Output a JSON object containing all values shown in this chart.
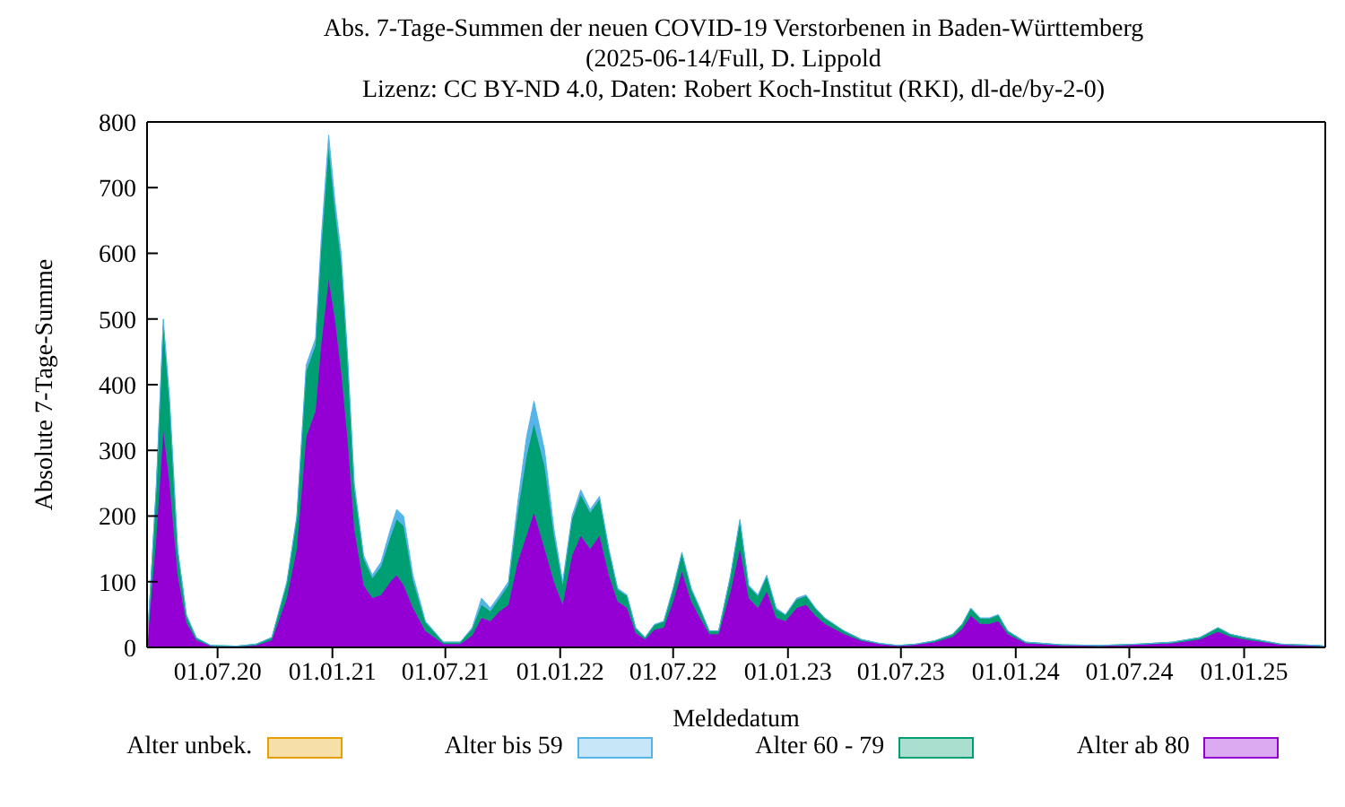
{
  "chart_data": {
    "type": "area",
    "stacked": true,
    "title": "Abs. 7-Tage-Summen der neuen COVID-19 Verstorbenen in Baden-Württemberg",
    "subtitle": "(2025-06-14/Full, D. Lippold\nLizenz: CC BY-ND 4.0, Daten: Robert Koch-Institut (RKI), dl-de/by-2-0)",
    "xlabel": "Meldedatum",
    "ylabel": "Absolute 7-Tage-Summe",
    "x": [
      "2020-03-10",
      "2020-03-25",
      "2020-04-05",
      "2020-04-15",
      "2020-04-28",
      "2020-05-12",
      "2020-05-28",
      "2020-06-20",
      "2020-08-01",
      "2020-09-01",
      "2020-09-26",
      "2020-10-20",
      "2020-11-05",
      "2020-11-20",
      "2020-12-05",
      "2020-12-14",
      "2020-12-26",
      "2021-01-05",
      "2021-01-15",
      "2021-01-25",
      "2021-02-05",
      "2021-02-20",
      "2021-03-06",
      "2021-03-20",
      "2021-04-04",
      "2021-04-14",
      "2021-04-25",
      "2021-05-10",
      "2021-05-30",
      "2021-06-28",
      "2021-07-25",
      "2021-08-13",
      "2021-08-28",
      "2021-09-11",
      "2021-09-26",
      "2021-10-10",
      "2021-10-25",
      "2021-11-08",
      "2021-11-20",
      "2021-12-07",
      "2021-12-22",
      "2022-01-05",
      "2022-01-20",
      "2022-02-03",
      "2022-02-18",
      "2022-03-05",
      "2022-03-20",
      "2022-04-03",
      "2022-04-18",
      "2022-05-02",
      "2022-05-17",
      "2022-06-01",
      "2022-06-16",
      "2022-07-01",
      "2022-07-15",
      "2022-07-30",
      "2022-08-13",
      "2022-08-28",
      "2022-09-12",
      "2022-10-01",
      "2022-10-16",
      "2022-10-30",
      "2022-11-14",
      "2022-11-28",
      "2022-12-13",
      "2022-12-28",
      "2023-01-15",
      "2023-01-30",
      "2023-02-14",
      "2023-03-01",
      "2023-04-01",
      "2023-04-29",
      "2023-05-28",
      "2023-06-26",
      "2023-07-25",
      "2023-08-24",
      "2023-09-22",
      "2023-10-07",
      "2023-10-21",
      "2023-11-05",
      "2023-11-20",
      "2023-12-04",
      "2023-12-19",
      "2024-01-17",
      "2024-03-15",
      "2024-05-15",
      "2024-07-15",
      "2024-09-08",
      "2024-10-22",
      "2024-11-20",
      "2024-12-10",
      "2025-01-02",
      "2025-03-01",
      "2025-04-30",
      "2025-05-10"
    ],
    "series": [
      {
        "name": "Alter ab 80",
        "color": "#9400d3",
        "values": [
          0,
          170,
          330,
          250,
          110,
          38,
          11,
          2,
          1,
          3,
          11,
          75,
          150,
          320,
          360,
          460,
          560,
          500,
          420,
          320,
          180,
          95,
          75,
          80,
          100,
          110,
          95,
          60,
          25,
          5,
          5,
          18,
          45,
          40,
          55,
          65,
          130,
          170,
          205,
          150,
          100,
          65,
          140,
          170,
          150,
          170,
          110,
          70,
          60,
          22,
          12,
          27,
          30,
          70,
          115,
          70,
          45,
          20,
          20,
          85,
          150,
          75,
          60,
          85,
          45,
          40,
          60,
          65,
          48,
          36,
          20,
          10,
          5,
          2,
          4,
          8,
          16,
          28,
          48,
          36,
          36,
          40,
          20,
          6,
          3,
          2,
          4,
          6,
          12,
          24,
          16,
          12,
          4,
          2,
          2
        ]
      },
      {
        "name": "Alter 60 - 79",
        "color": "#009e73",
        "values": [
          0,
          75,
          160,
          120,
          37,
          10,
          3,
          1,
          1,
          2,
          4,
          22,
          45,
          100,
          100,
          145,
          200,
          165,
          165,
          120,
          62,
          40,
          30,
          43,
          68,
          85,
          90,
          42,
          13,
          3,
          3,
          10,
          20,
          15,
          20,
          30,
          75,
          120,
          135,
          125,
          70,
          30,
          55,
          62,
          55,
          55,
          37,
          18,
          18,
          7,
          3,
          7,
          9,
          18,
          27,
          18,
          13,
          5,
          5,
          23,
          42,
          18,
          18,
          23,
          13,
          9,
          13,
          13,
          11,
          8,
          5,
          2,
          1,
          1,
          1,
          2,
          4,
          7,
          11,
          8,
          8,
          9,
          5,
          2,
          1,
          1,
          1,
          2,
          3,
          6,
          4,
          3,
          1,
          1,
          0
        ]
      },
      {
        "name": "Alter bis 59",
        "color": "#56b4e9",
        "values": [
          0,
          5,
          10,
          10,
          3,
          2,
          1,
          0,
          0,
          0,
          0,
          3,
          5,
          10,
          10,
          15,
          20,
          15,
          15,
          10,
          8,
          5,
          5,
          7,
          12,
          15,
          15,
          8,
          2,
          0,
          0,
          2,
          10,
          5,
          5,
          5,
          15,
          30,
          35,
          25,
          10,
          5,
          5,
          8,
          5,
          5,
          3,
          2,
          2,
          1,
          0,
          1,
          1,
          2,
          3,
          2,
          2,
          0,
          0,
          2,
          3,
          2,
          2,
          2,
          2,
          1,
          2,
          2,
          1,
          1,
          0,
          0,
          0,
          0,
          0,
          0,
          0,
          0,
          1,
          1,
          1,
          1,
          0,
          0,
          0,
          0,
          0,
          0,
          0,
          0,
          0,
          0,
          0,
          0,
          0
        ]
      },
      {
        "name": "Alter unbek.",
        "color": "#e69f00",
        "values": [
          null,
          null,
          null,
          null,
          null,
          null,
          null,
          null,
          null,
          null,
          null,
          null,
          null,
          null,
          null,
          null,
          null,
          null,
          null,
          null,
          null,
          null,
          null,
          null,
          null,
          null,
          null,
          null,
          null,
          null,
          null,
          null,
          null,
          null,
          null,
          null,
          null,
          null,
          null,
          null,
          null,
          null,
          null,
          null,
          null,
          null,
          null,
          null,
          null,
          null,
          null,
          null,
          null,
          null,
          null,
          null,
          null,
          null,
          null,
          null,
          null,
          null,
          null,
          null,
          null,
          null,
          null,
          null,
          null,
          null,
          null,
          null,
          null,
          null,
          null,
          null,
          null,
          null,
          null,
          null,
          null,
          null,
          null,
          null,
          null,
          null,
          null,
          null,
          null,
          null,
          null,
          null,
          null,
          null,
          null
        ]
      }
    ],
    "xlim": [
      "2020-03-10",
      "2025-05-11"
    ],
    "xticks": [
      {
        "value": "2020-07-01",
        "label": "01.07.20"
      },
      {
        "value": "2021-01-01",
        "label": "01.01.21"
      },
      {
        "value": "2021-07-01",
        "label": "01.07.21"
      },
      {
        "value": "2022-01-01",
        "label": "01.01.22"
      },
      {
        "value": "2022-07-01",
        "label": "01.07.22"
      },
      {
        "value": "2023-01-01",
        "label": "01.01.23"
      },
      {
        "value": "2023-07-01",
        "label": "01.07.23"
      },
      {
        "value": "2024-01-01",
        "label": "01.01.24"
      },
      {
        "value": "2024-07-01",
        "label": "01.07.24"
      },
      {
        "value": "2025-01-01",
        "label": "01.01.25"
      }
    ],
    "ylim": [
      0,
      800
    ],
    "yticks": [
      0,
      100,
      200,
      300,
      400,
      500,
      600,
      700,
      800
    ],
    "legend": "bottom"
  }
}
